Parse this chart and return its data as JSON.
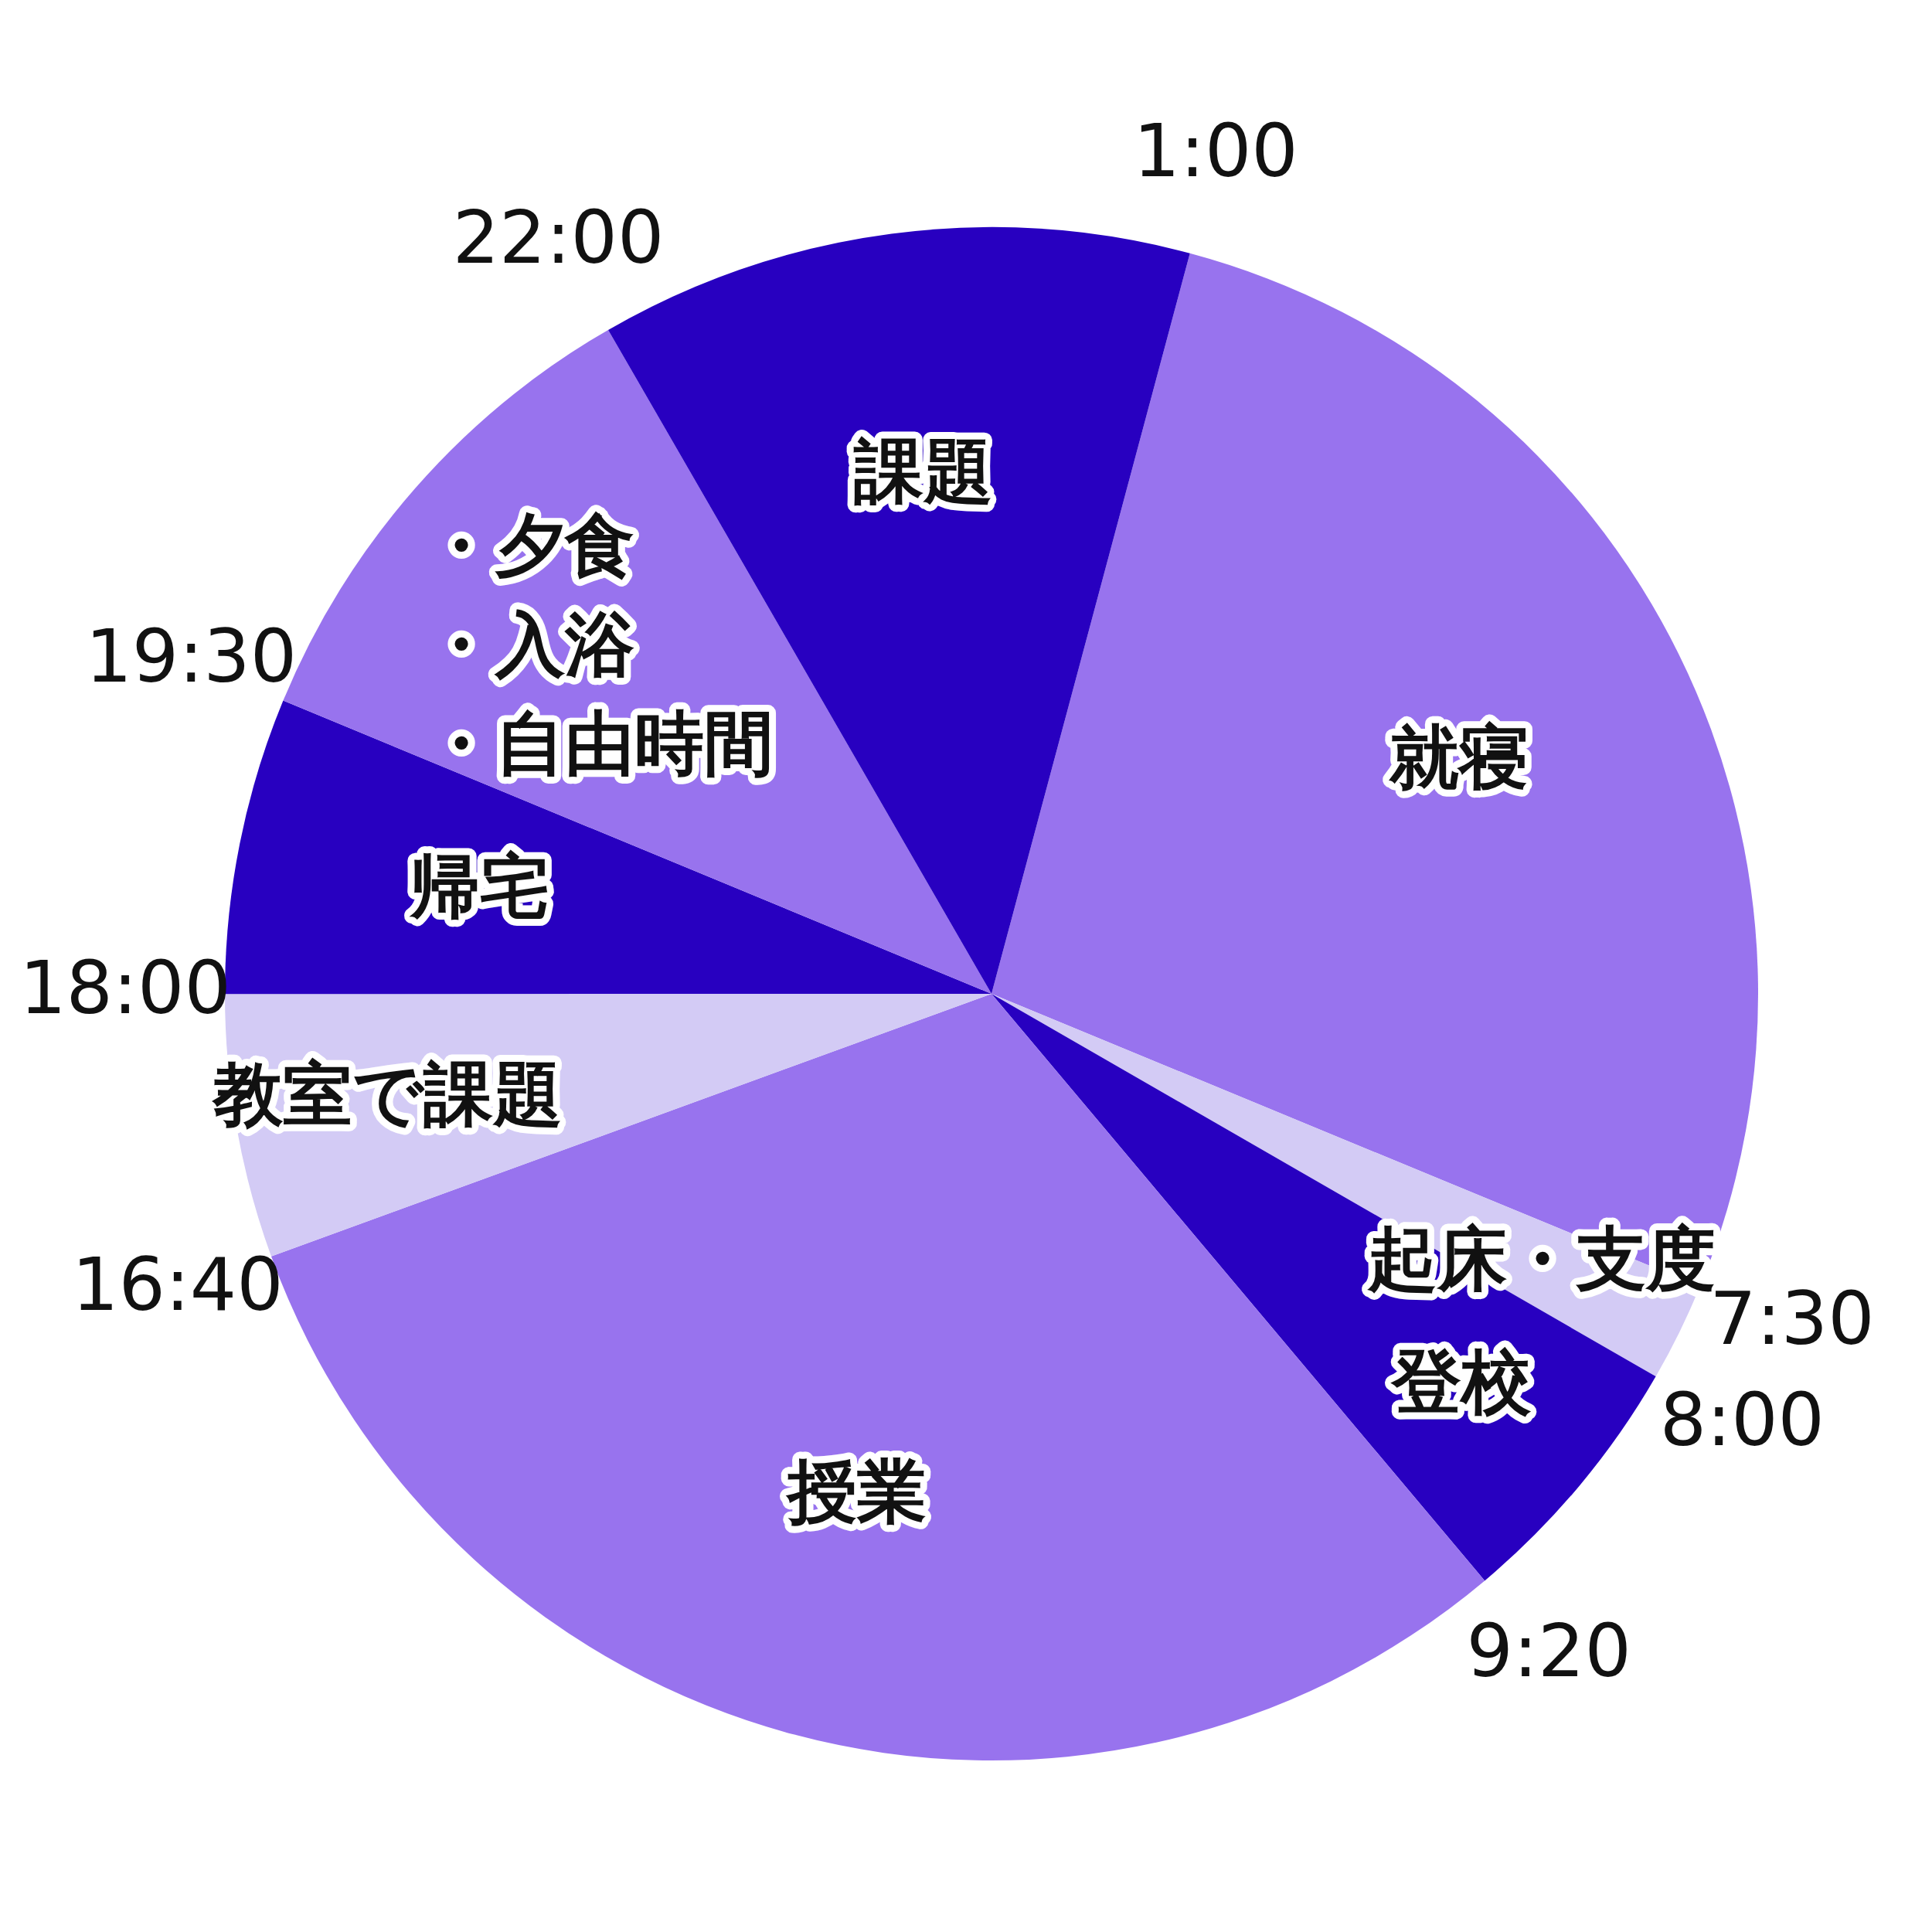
{
  "chart_data": {
    "type": "pie",
    "categories": [
      "就寝",
      "起床・支度",
      "登校",
      "授業",
      "教室で課題",
      "帰宅",
      "・夕食・入浴・自由時間",
      "課題"
    ],
    "values": [
      27.07,
      2.08,
      5.56,
      30.56,
      5.56,
      6.25,
      10.42,
      12.5
    ],
    "colors": [
      "#9873ee",
      "#d3cbf5",
      "#2800c0",
      "#9873ee",
      "#d3cbf5",
      "#2800c0",
      "#9873ee",
      "#2800c0"
    ],
    "annotations": [
      "1:00",
      "7:30",
      "8:00",
      "9:20",
      "16:40",
      "18:00",
      "19:30",
      "22:00"
    ],
    "legend": false
  }
}
